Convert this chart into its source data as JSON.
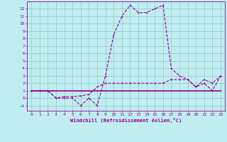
{
  "xlabel": "Windchill (Refroidissement éolien,°C)",
  "xlim": [
    -0.5,
    23.5
  ],
  "ylim": [
    -1.7,
    13.0
  ],
  "xticks": [
    0,
    1,
    2,
    3,
    4,
    5,
    6,
    7,
    8,
    9,
    10,
    11,
    12,
    13,
    14,
    15,
    16,
    17,
    18,
    19,
    20,
    21,
    22,
    23
  ],
  "yticks": [
    -1,
    0,
    1,
    2,
    3,
    4,
    5,
    6,
    7,
    8,
    9,
    10,
    11,
    12
  ],
  "bg_color": "#c0eef0",
  "grid_color": "#99cccc",
  "line_color": "#990099",
  "line1_x": [
    0,
    1,
    2,
    3,
    4,
    5,
    6,
    7,
    8,
    9,
    10,
    11,
    12,
    13,
    14,
    15,
    16,
    17,
    18,
    19,
    20,
    21,
    22,
    23
  ],
  "line1_y": [
    1,
    1,
    1,
    0,
    0,
    0,
    -1,
    0,
    -1,
    3,
    8.5,
    11,
    12.5,
    11.5,
    11.5,
    12,
    12.5,
    4,
    3,
    2.5,
    1.5,
    2,
    1,
    3
  ],
  "line2_x": [
    0,
    1,
    2,
    3,
    4,
    5,
    6,
    7,
    8,
    9,
    10,
    11,
    12,
    13,
    14,
    15,
    16,
    17,
    18,
    19,
    20,
    21,
    22,
    23
  ],
  "line2_y": [
    1,
    1,
    1,
    0,
    0.2,
    0.2,
    0.3,
    0.5,
    1.5,
    2,
    2,
    2,
    2,
    2,
    2,
    2,
    2,
    2.5,
    2.5,
    2.5,
    1.5,
    2.5,
    2,
    3
  ],
  "line3_x": [
    0,
    1,
    2,
    3,
    4,
    5,
    6,
    7,
    8,
    9,
    10,
    11,
    12,
    13,
    14,
    15,
    16,
    17,
    18,
    19,
    20,
    21,
    22,
    23
  ],
  "line3_y": [
    1,
    1,
    1,
    1,
    1,
    1,
    1,
    1,
    1,
    1,
    1,
    1,
    1,
    1,
    1,
    1,
    1,
    1,
    1,
    1,
    1,
    1,
    1,
    1
  ]
}
